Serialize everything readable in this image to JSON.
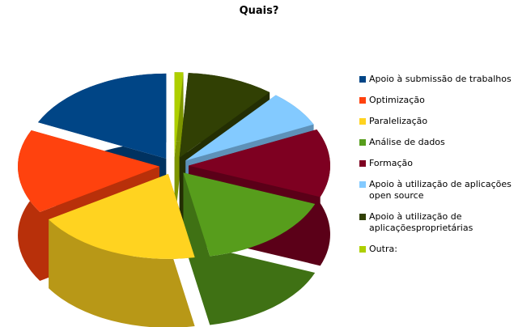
{
  "chart_data": {
    "type": "pie3d",
    "title": "Quais?",
    "categories": [
      "Apoio à submissão de trabalhos",
      "Optimização",
      "Paralelização",
      "Análise de dados",
      "Formação",
      "Apoio à utilização de aplicações open source",
      "Apoio à utilização de aplicaçõesproprietárias",
      "Outra:"
    ],
    "values": [
      18,
      16,
      19,
      16,
      13,
      7,
      10,
      1
    ],
    "colors": [
      "#004586",
      "#ff420e",
      "#ffd320",
      "#579d1c",
      "#7e0021",
      "#83caff",
      "#314004",
      "#aecf00"
    ],
    "legend": "right"
  }
}
